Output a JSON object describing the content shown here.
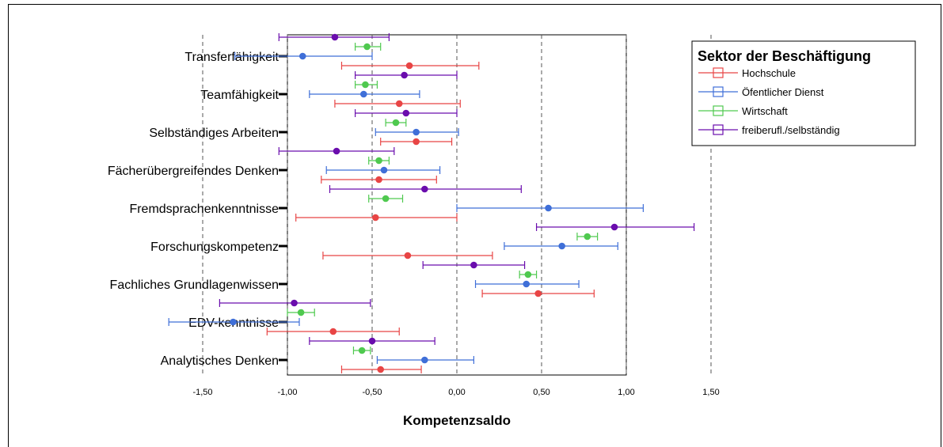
{
  "chart_data": {
    "type": "errorbar",
    "xlabel": "Kompetenzsaldo",
    "xlim": [
      -2.0,
      2.0
    ],
    "ticks": [
      -1.5,
      -1.0,
      -0.5,
      0.0,
      0.5,
      1.0,
      1.5
    ],
    "tick_labels": [
      "-1,50",
      "-1,00",
      "-0,50",
      "0,00",
      "0,50",
      "1,00",
      "1,50"
    ],
    "grid": "vertical dashed",
    "categories": [
      "Transferfähigkeit",
      "Teamfähigkeit",
      "Selbständiges Arbeiten",
      "Fächerübergreifendes Denken",
      "Fremdsprachenkenntnisse",
      "Forschungskompetenz",
      "Fachliches Grundlagenwissen",
      "EDV-kenntnisse",
      "Analytisches Denken"
    ],
    "legend": {
      "title": "Sektor der Beschäftigung",
      "placement": "top-right"
    },
    "series": [
      {
        "name": "freiberufl./selbständig",
        "color": "#6a0dad",
        "points": [
          {
            "mean": -0.72,
            "low": -1.05,
            "high": -0.4
          },
          {
            "mean": -0.31,
            "low": -0.6,
            "high": 0.0
          },
          {
            "mean": -0.3,
            "low": -0.6,
            "high": 0.0
          },
          {
            "mean": -0.71,
            "low": -1.05,
            "high": -0.37
          },
          {
            "mean": -0.19,
            "low": -0.75,
            "high": 0.38
          },
          {
            "mean": 0.93,
            "low": 0.47,
            "high": 1.4
          },
          {
            "mean": 0.1,
            "low": -0.2,
            "high": 0.4
          },
          {
            "mean": -0.96,
            "low": -1.4,
            "high": -0.51
          },
          {
            "mean": -0.5,
            "low": -0.87,
            "high": -0.13
          }
        ]
      },
      {
        "name": "Wirtschaft",
        "color": "#4fc94f",
        "points": [
          {
            "mean": -0.53,
            "low": -0.6,
            "high": -0.45
          },
          {
            "mean": -0.54,
            "low": -0.6,
            "high": -0.47
          },
          {
            "mean": -0.36,
            "low": -0.42,
            "high": -0.3
          },
          {
            "mean": -0.46,
            "low": -0.52,
            "high": -0.4
          },
          {
            "mean": -0.42,
            "low": -0.52,
            "high": -0.32
          },
          {
            "mean": 0.77,
            "low": 0.71,
            "high": 0.83
          },
          {
            "mean": 0.42,
            "low": 0.37,
            "high": 0.47
          },
          {
            "mean": -0.92,
            "low": -1.0,
            "high": -0.84
          },
          {
            "mean": -0.56,
            "low": -0.61,
            "high": -0.51
          }
        ]
      },
      {
        "name": "Öfentlicher Dienst",
        "color": "#3f6fd8",
        "points": [
          {
            "mean": -0.91,
            "low": -1.31,
            "high": -0.5
          },
          {
            "mean": -0.55,
            "low": -0.87,
            "high": -0.22
          },
          {
            "mean": -0.24,
            "low": -0.48,
            "high": 0.01
          },
          {
            "mean": -0.43,
            "low": -0.77,
            "high": -0.1
          },
          {
            "mean": 0.54,
            "low": 0.0,
            "high": 1.1
          },
          {
            "mean": 0.62,
            "low": 0.28,
            "high": 0.95
          },
          {
            "mean": 0.41,
            "low": 0.11,
            "high": 0.72
          },
          {
            "mean": -1.32,
            "low": -1.7,
            "high": -0.93
          },
          {
            "mean": -0.19,
            "low": -0.47,
            "high": 0.1
          }
        ]
      },
      {
        "name": "Hochschule",
        "color": "#e84545",
        "points": [
          {
            "mean": -0.28,
            "low": -0.68,
            "high": 0.13
          },
          {
            "mean": -0.34,
            "low": -0.72,
            "high": 0.02
          },
          {
            "mean": -0.24,
            "low": -0.45,
            "high": -0.03
          },
          {
            "mean": -0.46,
            "low": -0.8,
            "high": -0.12
          },
          {
            "mean": -0.48,
            "low": -0.95,
            "high": 0.0
          },
          {
            "mean": -0.29,
            "low": -0.79,
            "high": 0.21
          },
          {
            "mean": 0.48,
            "low": 0.15,
            "high": 0.81
          },
          {
            "mean": -0.73,
            "low": -1.12,
            "high": -0.34
          },
          {
            "mean": -0.45,
            "low": -0.68,
            "high": -0.21
          }
        ]
      }
    ]
  }
}
